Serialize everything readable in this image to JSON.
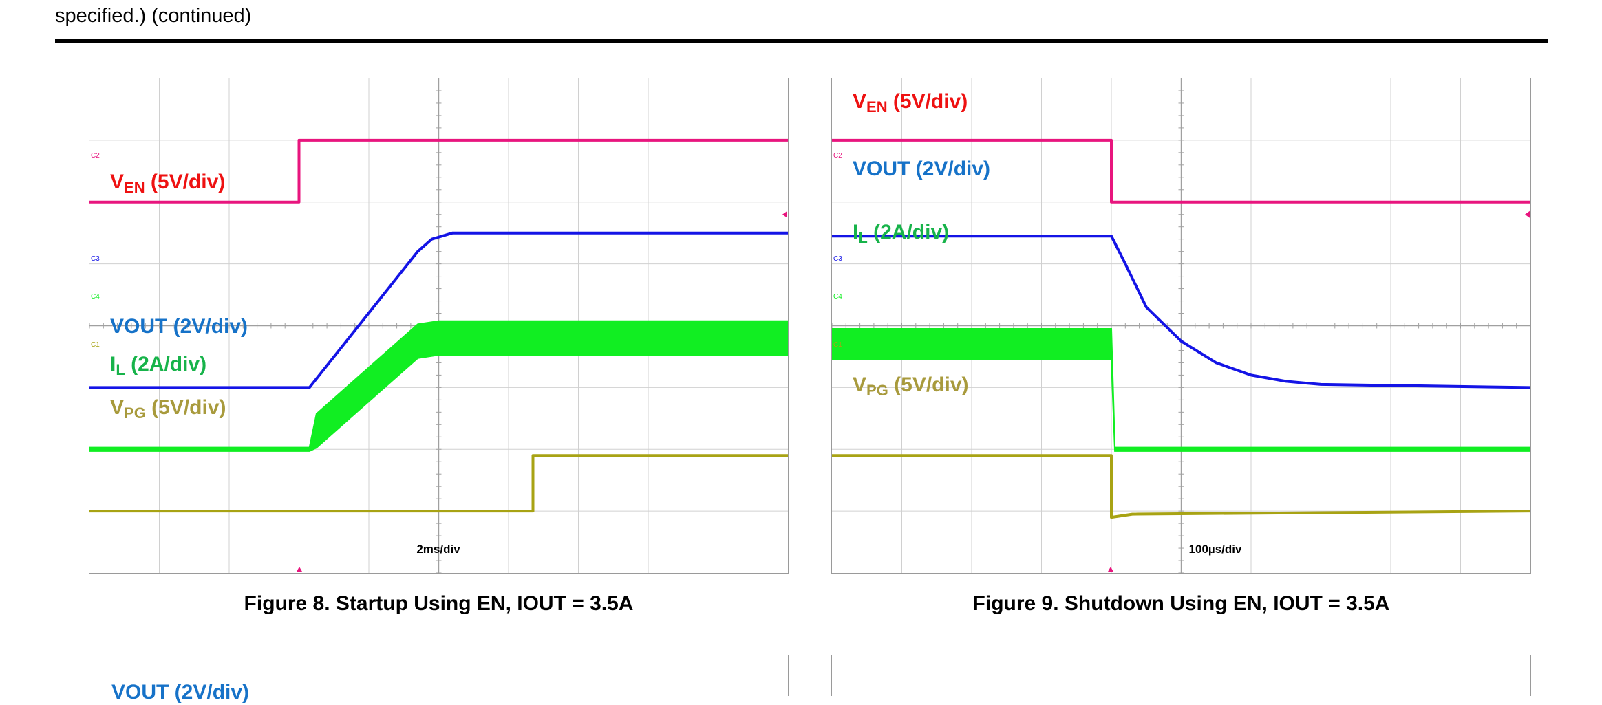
{
  "header": {
    "text": "specified.) (continued)"
  },
  "colors": {
    "ven": "#e8157e",
    "vout": "#1414e6",
    "il": "#11ee22",
    "vpg": "#a8a314",
    "ven_label": "#ee1111",
    "vout_label": "#1672c8",
    "il_label": "#17b34a",
    "vpg_label": "#a89a3c"
  },
  "chart_data": [
    {
      "type": "line",
      "title": "Figure 8. Startup Using EN, IOUT = 3.5A",
      "time_per_div": "2ms/div",
      "grid": true,
      "divisions": {
        "x": 10,
        "y": 8
      },
      "x_unit": "div",
      "y_unit": "div",
      "channel_tags": [
        "C2",
        "C3",
        "C4",
        "C1"
      ],
      "series": [
        {
          "key": "ven",
          "name": "VEN (5V/div)",
          "label_main": "V",
          "label_sub": "EN",
          "label_tail": " (5V/div)",
          "channel": "C2",
          "points": [
            [
              0,
              6.0
            ],
            [
              3.0,
              6.0
            ],
            [
              3.0,
              7.0
            ],
            [
              10,
              7.0
            ]
          ]
        },
        {
          "key": "vout",
          "name": "VOUT (2V/div)",
          "label_main": "VOUT",
          "label_sub": "",
          "label_tail": " (2V/div)",
          "channel": "C3",
          "points": [
            [
              0,
              3.0
            ],
            [
              3.15,
              3.0
            ],
            [
              4.7,
              5.2
            ],
            [
              4.9,
              5.4
            ],
            [
              5.2,
              5.5
            ],
            [
              10,
              5.5
            ]
          ]
        },
        {
          "key": "il",
          "name": "IL (2A/div)",
          "label_main": "I",
          "label_sub": "L",
          "label_tail": " (2A/div)",
          "channel": "C4",
          "points": [
            [
              0,
              2.0
            ],
            [
              3.15,
              2.0
            ],
            [
              3.25,
              2.3
            ],
            [
              4.7,
              3.75
            ],
            [
              5.0,
              3.8
            ],
            [
              10,
              3.8
            ]
          ],
          "ripple_div": 0.55
        },
        {
          "key": "vpg",
          "name": "VPG (5V/div)",
          "label_main": "V",
          "label_sub": "PG",
          "label_tail": " (5V/div)",
          "channel": "C1",
          "points": [
            [
              0,
              1.0
            ],
            [
              6.35,
              1.0
            ],
            [
              6.35,
              1.9
            ],
            [
              10,
              1.9
            ]
          ]
        }
      ]
    },
    {
      "type": "line",
      "title": "Figure 9. Shutdown Using EN, IOUT = 3.5A",
      "time_per_div": "100µs/div",
      "grid": true,
      "divisions": {
        "x": 10,
        "y": 8
      },
      "x_unit": "div",
      "y_unit": "div",
      "channel_tags": [
        "C2",
        "C3",
        "C4",
        "C1"
      ],
      "series": [
        {
          "key": "ven",
          "name": "VEN (5V/div)",
          "label_main": "V",
          "label_sub": "EN",
          "label_tail": " (5V/div)",
          "channel": "C2",
          "points": [
            [
              0,
              7.0
            ],
            [
              4.0,
              7.0
            ],
            [
              4.0,
              6.0
            ],
            [
              10,
              6.0
            ]
          ]
        },
        {
          "key": "vout",
          "name": "VOUT (2V/div)",
          "label_main": "VOUT",
          "label_sub": "",
          "label_tail": " (2V/div)",
          "channel": "C3",
          "points": [
            [
              0,
              5.45
            ],
            [
              4.0,
              5.45
            ],
            [
              4.2,
              5.0
            ],
            [
              4.5,
              4.3
            ],
            [
              5.0,
              3.75
            ],
            [
              5.5,
              3.4
            ],
            [
              6.0,
              3.2
            ],
            [
              6.5,
              3.1
            ],
            [
              7.0,
              3.05
            ],
            [
              10,
              3.0
            ]
          ]
        },
        {
          "key": "il",
          "name": "IL (2A/div)",
          "label_main": "I",
          "label_sub": "L",
          "label_tail": " (2A/div)",
          "channel": "C4",
          "points": [
            [
              0,
              3.7
            ],
            [
              4.0,
              3.7
            ],
            [
              4.05,
              2.0
            ],
            [
              10,
              2.0
            ]
          ],
          "ripple_div": 0.5,
          "ripple_until": 4.0
        },
        {
          "key": "vpg",
          "name": "VPG (5V/div)",
          "label_main": "V",
          "label_sub": "PG",
          "label_tail": " (5V/div)",
          "channel": "C1",
          "points": [
            [
              0,
              1.9
            ],
            [
              4.0,
              1.9
            ],
            [
              4.0,
              0.9
            ],
            [
              4.3,
              0.95
            ],
            [
              10,
              1.0
            ]
          ]
        }
      ]
    }
  ]
}
